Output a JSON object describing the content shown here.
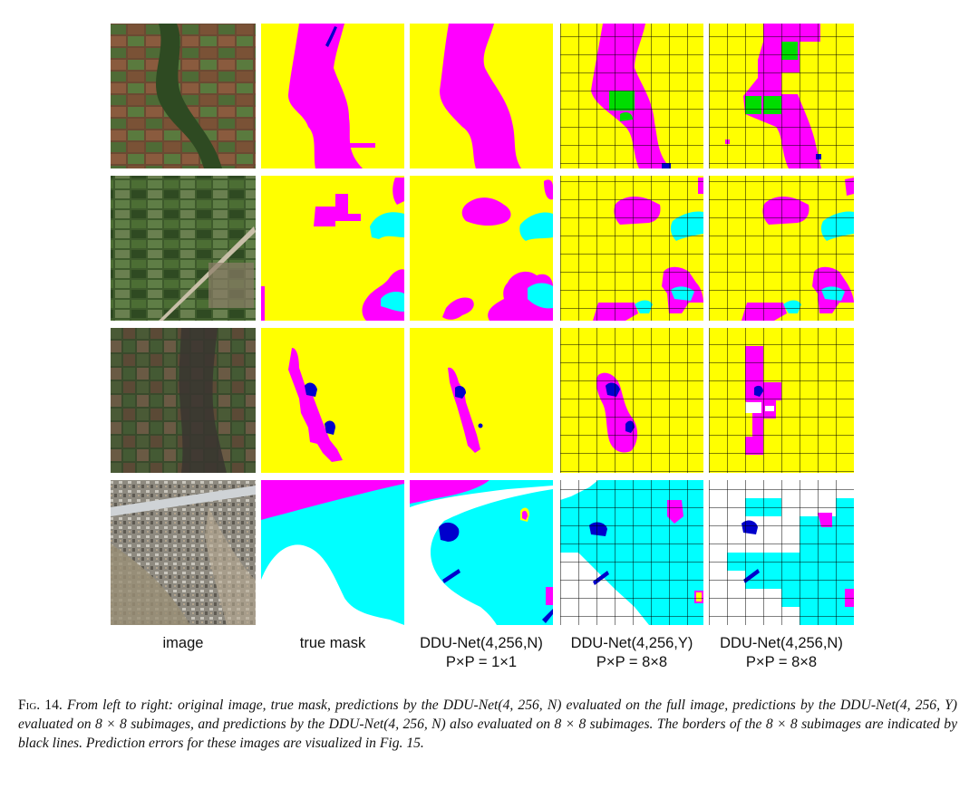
{
  "columns": [
    {
      "line1": "image",
      "line2": ""
    },
    {
      "line1": "true mask",
      "line2": ""
    },
    {
      "line1": "DDU-Net(4,256,N)",
      "line2": "P×P = 1×1"
    },
    {
      "line1": "DDU-Net(4,256,Y)",
      "line2": "P×P = 8×8"
    },
    {
      "line1": "DDU-Net(4,256,N)",
      "line2": "P×P = 8×8"
    }
  ],
  "caption": {
    "fig_number": "Fig. 14.",
    "text": "From left to right: original image, true mask, predictions by the DDU-Net(4, 256, N) evaluated on the full image, predictions by the DDU-Net(4, 256, Y) evaluated on 8 × 8 subimages, and predictions by the DDU-Net(4, 256, N) also evaluated on 8 × 8 subimages. The borders of the 8 × 8 subimages are indicated by black lines. Prediction errors for these images are visualized in Fig. 15."
  },
  "colors": {
    "class_yellow": "#ffff00",
    "class_magenta": "#ff00ff",
    "class_cyan": "#00ffff",
    "class_blue": "#0000cc",
    "class_green": "#00dd00",
    "class_white": "#ffffff",
    "grid_lines": "#000000"
  },
  "rows": [
    {
      "name": "row-1-farmland-river",
      "grid_panels": [
        3,
        4
      ]
    },
    {
      "name": "row-2-fields-road",
      "grid_panels": [
        3,
        4
      ]
    },
    {
      "name": "row-3-dark-vegetation",
      "grid_panels": [
        3,
        4
      ]
    },
    {
      "name": "row-4-urban",
      "grid_panels": [
        3,
        4
      ]
    }
  ]
}
